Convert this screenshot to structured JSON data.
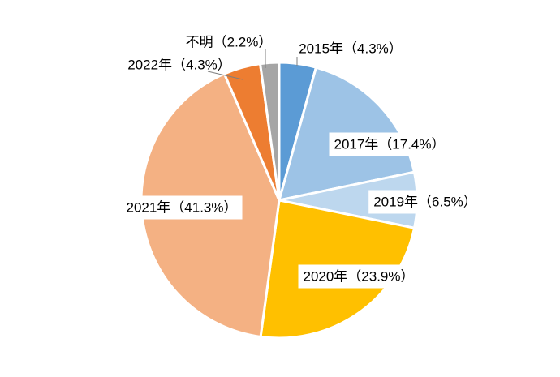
{
  "chart_data": {
    "type": "pie",
    "title": "",
    "start_angle_deg": 0,
    "direction": "clockwise",
    "slices": [
      {
        "label": "2015年（4.3%）",
        "category": "2015年",
        "value": 4.3,
        "color": "#5B9BD5"
      },
      {
        "label": "2017年（17.4%）",
        "category": "2017年",
        "value": 17.4,
        "color": "#9DC3E6"
      },
      {
        "label": "2019年（6.5%）",
        "category": "2019年",
        "value": 6.5,
        "color": "#BDD7EE"
      },
      {
        "label": "2020年（23.9%）",
        "category": "2020年",
        "value": 23.9,
        "color": "#FFC000"
      },
      {
        "label": "2021年（41.3%）",
        "category": "2021年",
        "value": 41.3,
        "color": "#F4B183"
      },
      {
        "label": "2022年（4.3%）",
        "category": "2022年",
        "value": 4.3,
        "color": "#ED7D31"
      },
      {
        "label": "不明（2.2%）",
        "category": "不明",
        "value": 2.2,
        "color": "#A5A5A5"
      }
    ]
  }
}
